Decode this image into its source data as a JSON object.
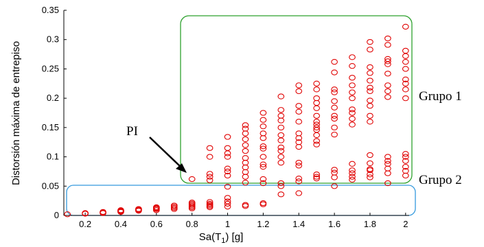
{
  "chart_data": {
    "type": "scatter",
    "xlabel": "Sa(T1) [g]",
    "ylabel": "Distorsión máxima de entrepiso",
    "xlim": [
      0.08,
      2.02
    ],
    "ylim": [
      0,
      0.35
    ],
    "xticks": [
      "0.2",
      "0.4",
      "0.6",
      "0.8",
      "1",
      "1.2",
      "1.4",
      "1.6",
      "1.8",
      "2"
    ],
    "yticks": [
      "0",
      "0.05",
      "0.1",
      "0.15",
      "0.2",
      "0.25",
      "0.3",
      "0.35"
    ],
    "grid": false,
    "marker_color": "#e00000",
    "series": [
      {
        "values": [
          [
            0.1,
            0.002
          ],
          [
            0.2,
            0.003
          ],
          [
            0.2,
            0.004
          ],
          [
            0.3,
            0.004
          ],
          [
            0.3,
            0.005
          ],
          [
            0.3,
            0.006
          ],
          [
            0.4,
            0.006
          ],
          [
            0.4,
            0.007
          ],
          [
            0.4,
            0.008
          ],
          [
            0.4,
            0.009
          ],
          [
            0.5,
            0.008
          ],
          [
            0.5,
            0.009
          ],
          [
            0.5,
            0.01
          ],
          [
            0.5,
            0.011
          ],
          [
            0.6,
            0.009
          ],
          [
            0.6,
            0.011
          ],
          [
            0.6,
            0.012
          ],
          [
            0.6,
            0.013
          ],
          [
            0.6,
            0.014
          ],
          [
            0.7,
            0.011
          ],
          [
            0.7,
            0.013
          ],
          [
            0.7,
            0.015
          ],
          [
            0.7,
            0.017
          ],
          [
            0.8,
            0.012
          ],
          [
            0.8,
            0.014
          ],
          [
            0.8,
            0.016
          ],
          [
            0.8,
            0.018
          ],
          [
            0.8,
            0.02
          ],
          [
            0.8,
            0.022
          ],
          [
            0.8,
            0.062
          ],
          [
            0.9,
            0.014
          ],
          [
            0.9,
            0.016
          ],
          [
            0.9,
            0.018
          ],
          [
            0.9,
            0.02
          ],
          [
            0.9,
            0.023
          ],
          [
            0.9,
            0.06
          ],
          [
            0.9,
            0.066
          ],
          [
            0.9,
            0.071
          ],
          [
            0.9,
            0.1
          ],
          [
            0.9,
            0.115
          ],
          [
            1.0,
            0.015
          ],
          [
            1.0,
            0.02
          ],
          [
            1.0,
            0.024
          ],
          [
            1.0,
            0.03
          ],
          [
            1.0,
            0.049
          ],
          [
            1.0,
            0.068
          ],
          [
            1.0,
            0.075
          ],
          [
            1.0,
            0.08
          ],
          [
            1.0,
            0.1
          ],
          [
            1.0,
            0.106
          ],
          [
            1.0,
            0.115
          ],
          [
            1.0,
            0.134
          ],
          [
            1.1,
            0.016
          ],
          [
            1.1,
            0.018
          ],
          [
            1.1,
            0.056
          ],
          [
            1.1,
            0.066
          ],
          [
            1.1,
            0.074
          ],
          [
            1.1,
            0.082
          ],
          [
            1.1,
            0.09
          ],
          [
            1.1,
            0.098
          ],
          [
            1.1,
            0.11
          ],
          [
            1.1,
            0.12
          ],
          [
            1.1,
            0.13
          ],
          [
            1.1,
            0.14
          ],
          [
            1.1,
            0.148
          ],
          [
            1.1,
            0.154
          ],
          [
            1.2,
            0.019
          ],
          [
            1.2,
            0.021
          ],
          [
            1.2,
            0.055
          ],
          [
            1.2,
            0.062
          ],
          [
            1.2,
            0.083
          ],
          [
            1.2,
            0.087
          ],
          [
            1.2,
            0.1
          ],
          [
            1.2,
            0.114
          ],
          [
            1.2,
            0.118
          ],
          [
            1.2,
            0.132
          ],
          [
            1.2,
            0.14
          ],
          [
            1.2,
            0.152
          ],
          [
            1.2,
            0.163
          ],
          [
            1.2,
            0.175
          ],
          [
            1.3,
            0.036
          ],
          [
            1.3,
            0.05
          ],
          [
            1.3,
            0.055
          ],
          [
            1.3,
            0.09
          ],
          [
            1.3,
            0.1
          ],
          [
            1.3,
            0.11
          ],
          [
            1.3,
            0.116
          ],
          [
            1.3,
            0.128
          ],
          [
            1.3,
            0.137
          ],
          [
            1.3,
            0.15
          ],
          [
            1.3,
            0.162
          ],
          [
            1.3,
            0.17
          ],
          [
            1.3,
            0.18
          ],
          [
            1.3,
            0.203
          ],
          [
            1.4,
            0.038
          ],
          [
            1.4,
            0.058
          ],
          [
            1.4,
            0.063
          ],
          [
            1.4,
            0.085
          ],
          [
            1.4,
            0.09
          ],
          [
            1.4,
            0.117
          ],
          [
            1.4,
            0.125
          ],
          [
            1.4,
            0.132
          ],
          [
            1.4,
            0.14
          ],
          [
            1.4,
            0.16
          ],
          [
            1.4,
            0.177
          ],
          [
            1.4,
            0.187
          ],
          [
            1.4,
            0.212
          ],
          [
            1.4,
            0.222
          ],
          [
            1.5,
            0.063
          ],
          [
            1.5,
            0.066
          ],
          [
            1.5,
            0.07
          ],
          [
            1.5,
            0.121
          ],
          [
            1.5,
            0.127
          ],
          [
            1.5,
            0.137
          ],
          [
            1.5,
            0.146
          ],
          [
            1.5,
            0.15
          ],
          [
            1.5,
            0.155
          ],
          [
            1.5,
            0.16
          ],
          [
            1.5,
            0.17
          ],
          [
            1.5,
            0.183
          ],
          [
            1.5,
            0.192
          ],
          [
            1.5,
            0.2
          ],
          [
            1.5,
            0.215
          ],
          [
            1.5,
            0.225
          ],
          [
            1.6,
            0.05
          ],
          [
            1.6,
            0.065
          ],
          [
            1.6,
            0.073
          ],
          [
            1.6,
            0.078
          ],
          [
            1.6,
            0.138
          ],
          [
            1.6,
            0.15
          ],
          [
            1.6,
            0.165
          ],
          [
            1.6,
            0.17
          ],
          [
            1.6,
            0.184
          ],
          [
            1.6,
            0.195
          ],
          [
            1.6,
            0.21
          ],
          [
            1.6,
            0.215
          ],
          [
            1.6,
            0.244
          ],
          [
            1.6,
            0.262
          ],
          [
            1.7,
            0.061
          ],
          [
            1.7,
            0.066
          ],
          [
            1.7,
            0.072
          ],
          [
            1.7,
            0.077
          ],
          [
            1.7,
            0.088
          ],
          [
            1.7,
            0.155
          ],
          [
            1.7,
            0.165
          ],
          [
            1.7,
            0.175
          ],
          [
            1.7,
            0.181
          ],
          [
            1.7,
            0.2
          ],
          [
            1.7,
            0.21
          ],
          [
            1.7,
            0.222
          ],
          [
            1.7,
            0.235
          ],
          [
            1.7,
            0.255
          ],
          [
            1.7,
            0.27
          ],
          [
            1.8,
            0.065
          ],
          [
            1.8,
            0.07
          ],
          [
            1.8,
            0.077
          ],
          [
            1.8,
            0.079
          ],
          [
            1.8,
            0.089
          ],
          [
            1.8,
            0.103
          ],
          [
            1.8,
            0.16
          ],
          [
            1.8,
            0.17
          ],
          [
            1.8,
            0.187
          ],
          [
            1.8,
            0.196
          ],
          [
            1.8,
            0.212
          ],
          [
            1.8,
            0.218
          ],
          [
            1.8,
            0.23
          ],
          [
            1.8,
            0.243
          ],
          [
            1.8,
            0.253
          ],
          [
            1.8,
            0.283
          ],
          [
            1.8,
            0.296
          ],
          [
            1.9,
            0.055
          ],
          [
            1.9,
            0.072
          ],
          [
            1.9,
            0.08
          ],
          [
            1.9,
            0.088
          ],
          [
            1.9,
            0.093
          ],
          [
            1.9,
            0.1
          ],
          [
            1.9,
            0.202
          ],
          [
            1.9,
            0.212
          ],
          [
            1.9,
            0.222
          ],
          [
            1.9,
            0.242
          ],
          [
            1.9,
            0.258
          ],
          [
            1.9,
            0.263
          ],
          [
            1.9,
            0.267
          ],
          [
            1.9,
            0.291
          ],
          [
            1.9,
            0.302
          ],
          [
            2.0,
            0.068
          ],
          [
            2.0,
            0.076
          ],
          [
            2.0,
            0.083
          ],
          [
            2.0,
            0.093
          ],
          [
            2.0,
            0.1
          ],
          [
            2.0,
            0.105
          ],
          [
            2.0,
            0.2
          ],
          [
            2.0,
            0.215
          ],
          [
            2.0,
            0.225
          ],
          [
            2.0,
            0.232
          ],
          [
            2.0,
            0.25
          ],
          [
            2.0,
            0.262
          ],
          [
            2.0,
            0.272
          ],
          [
            2.0,
            0.281
          ],
          [
            2.0,
            0.322
          ]
        ]
      }
    ],
    "annotations": {
      "pi_label": "PI",
      "group1_label": "Grupo 1",
      "group2_label": "Grupo 2",
      "group1_box_color": "#2ca02c",
      "group2_box_color": "#3399dd",
      "arrow_color": "#000000"
    }
  }
}
